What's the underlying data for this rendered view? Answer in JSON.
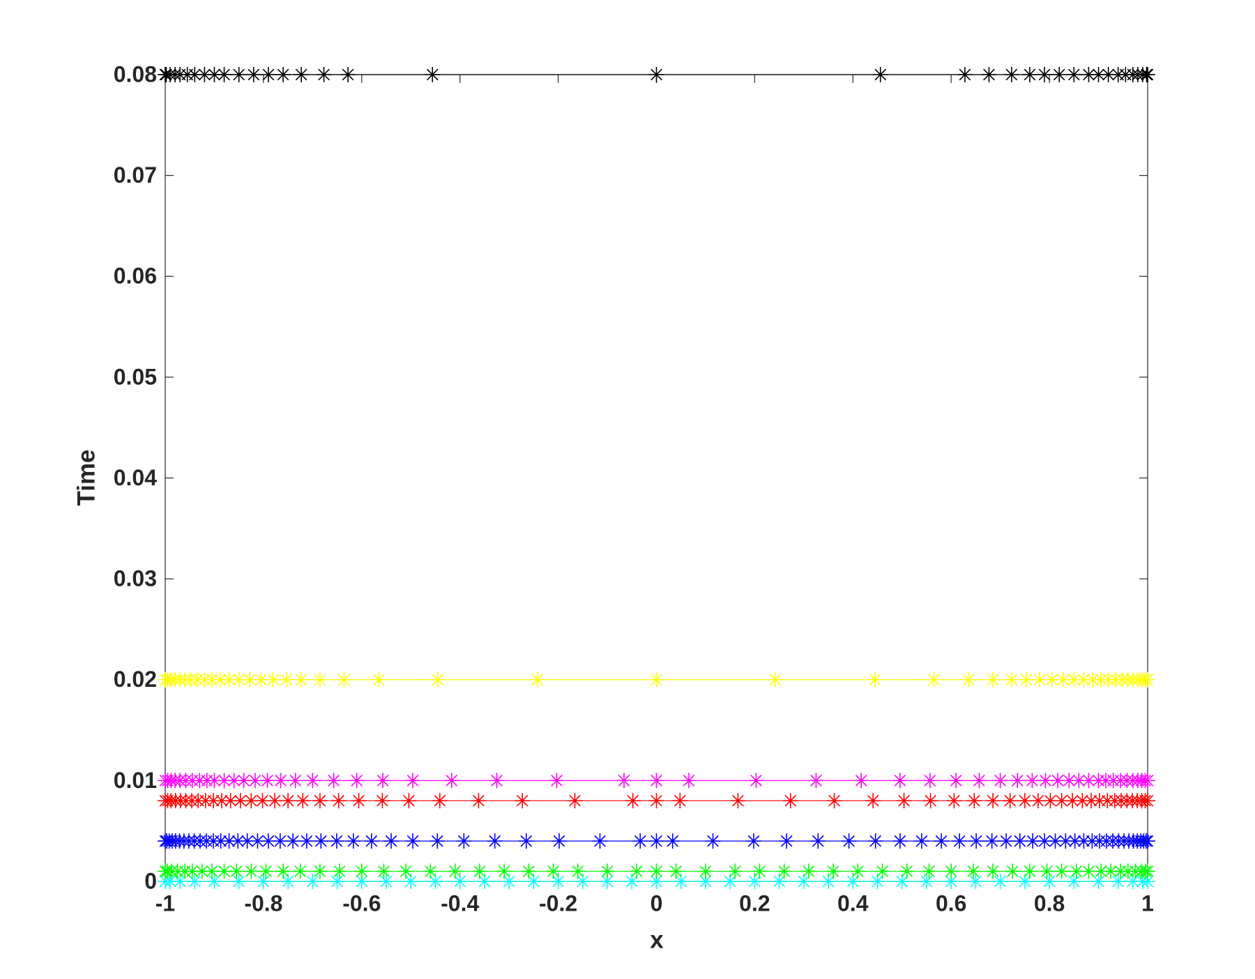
{
  "chart_data": {
    "type": "line",
    "xlabel": "x",
    "ylabel": "Time",
    "xlim": [
      -1,
      1
    ],
    "ylim": [
      0,
      0.08
    ],
    "xticks": [
      -1,
      -0.8,
      -0.6,
      -0.4,
      -0.2,
      0,
      0.2,
      0.4,
      0.6,
      0.8,
      1
    ],
    "yticks": [
      0,
      0.01,
      0.02,
      0.03,
      0.04,
      0.05,
      0.06,
      0.07,
      0.08
    ],
    "marker": "asterisk",
    "series": [
      {
        "color": "#00ffff",
        "x": [
          -1,
          -0.99,
          -0.97,
          -0.94,
          -0.9,
          -0.85,
          -0.8,
          -0.75,
          -0.7,
          -0.65,
          -0.6,
          -0.55,
          -0.5,
          -0.45,
          -0.4,
          -0.35,
          -0.3,
          -0.25,
          -0.2,
          -0.15,
          -0.1,
          -0.05,
          0,
          0.05,
          0.1,
          0.15,
          0.2,
          0.25,
          0.3,
          0.35,
          0.4,
          0.45,
          0.5,
          0.55,
          0.6,
          0.65,
          0.7,
          0.75,
          0.8,
          0.85,
          0.9,
          0.94,
          0.97,
          0.99,
          1
        ],
        "values": [
          0,
          0,
          0,
          0,
          0,
          0,
          0,
          0,
          0,
          0,
          0,
          0,
          0,
          0,
          0,
          0,
          0,
          0,
          0,
          0,
          0,
          0,
          0,
          0,
          0,
          0,
          0,
          0,
          0,
          0,
          0,
          0,
          0,
          0,
          0,
          0,
          0,
          0,
          0,
          0,
          0,
          0,
          0,
          0,
          0
        ]
      },
      {
        "color": "#00ff00",
        "x": [
          -1,
          -0.996,
          -0.987,
          -0.975,
          -0.96,
          -0.945,
          -0.925,
          -0.905,
          -0.88,
          -0.855,
          -0.825,
          -0.795,
          -0.76,
          -0.725,
          -0.685,
          -0.645,
          -0.6,
          -0.555,
          -0.51,
          -0.46,
          -0.41,
          -0.36,
          -0.31,
          -0.26,
          -0.21,
          -0.16,
          -0.1,
          -0.04,
          0,
          0.04,
          0.1,
          0.16,
          0.21,
          0.26,
          0.31,
          0.36,
          0.41,
          0.46,
          0.51,
          0.555,
          0.6,
          0.645,
          0.685,
          0.725,
          0.76,
          0.795,
          0.825,
          0.855,
          0.88,
          0.905,
          0.925,
          0.945,
          0.96,
          0.975,
          0.987,
          0.996,
          1
        ],
        "values": [
          0.001,
          0.001,
          0.001,
          0.001,
          0.001,
          0.001,
          0.001,
          0.001,
          0.001,
          0.001,
          0.001,
          0.001,
          0.001,
          0.001,
          0.001,
          0.001,
          0.001,
          0.001,
          0.001,
          0.001,
          0.001,
          0.001,
          0.001,
          0.001,
          0.001,
          0.001,
          0.001,
          0.001,
          0.001,
          0.001,
          0.001,
          0.001,
          0.001,
          0.001,
          0.001,
          0.001,
          0.001,
          0.001,
          0.001,
          0.001,
          0.001,
          0.001,
          0.001,
          0.001,
          0.001,
          0.001,
          0.001,
          0.001,
          0.001,
          0.001,
          0.001,
          0.001,
          0.001,
          0.001,
          0.001,
          0.001,
          0.001
        ]
      },
      {
        "color": "#0000ff",
        "x": [
          -1,
          -0.997,
          -0.992,
          -0.986,
          -0.979,
          -0.971,
          -0.962,
          -0.952,
          -0.941,
          -0.929,
          -0.916,
          -0.902,
          -0.887,
          -0.87,
          -0.852,
          -0.833,
          -0.812,
          -0.79,
          -0.766,
          -0.74,
          -0.712,
          -0.683,
          -0.651,
          -0.617,
          -0.58,
          -0.54,
          -0.496,
          -0.446,
          -0.392,
          -0.329,
          -0.265,
          -0.198,
          -0.115,
          -0.033,
          0,
          0.033,
          0.115,
          0.198,
          0.265,
          0.329,
          0.392,
          0.446,
          0.496,
          0.54,
          0.58,
          0.617,
          0.651,
          0.683,
          0.712,
          0.74,
          0.766,
          0.79,
          0.812,
          0.833,
          0.852,
          0.87,
          0.887,
          0.902,
          0.916,
          0.929,
          0.941,
          0.952,
          0.962,
          0.971,
          0.979,
          0.986,
          0.992,
          0.997,
          1
        ],
        "values": [
          0.004,
          0.004,
          0.004,
          0.004,
          0.004,
          0.004,
          0.004,
          0.004,
          0.004,
          0.004,
          0.004,
          0.004,
          0.004,
          0.004,
          0.004,
          0.004,
          0.004,
          0.004,
          0.004,
          0.004,
          0.004,
          0.004,
          0.004,
          0.004,
          0.004,
          0.004,
          0.004,
          0.004,
          0.004,
          0.004,
          0.004,
          0.004,
          0.004,
          0.004,
          0.004,
          0.004,
          0.004,
          0.004,
          0.004,
          0.004,
          0.004,
          0.004,
          0.004,
          0.004,
          0.004,
          0.004,
          0.004,
          0.004,
          0.004,
          0.004,
          0.004,
          0.004,
          0.004,
          0.004,
          0.004,
          0.004,
          0.004,
          0.004,
          0.004,
          0.004,
          0.004,
          0.004,
          0.004,
          0.004,
          0.004,
          0.004,
          0.004,
          0.004,
          0.004
        ]
      },
      {
        "color": "#ff0000",
        "x": [
          -1,
          -0.995,
          -0.988,
          -0.979,
          -0.969,
          -0.958,
          -0.946,
          -0.933,
          -0.918,
          -0.902,
          -0.885,
          -0.867,
          -0.847,
          -0.825,
          -0.802,
          -0.777,
          -0.75,
          -0.72,
          -0.685,
          -0.647,
          -0.606,
          -0.558,
          -0.504,
          -0.441,
          -0.362,
          -0.273,
          -0.166,
          -0.048,
          0,
          0.048,
          0.166,
          0.273,
          0.362,
          0.441,
          0.504,
          0.558,
          0.606,
          0.647,
          0.685,
          0.72,
          0.75,
          0.777,
          0.802,
          0.825,
          0.847,
          0.867,
          0.885,
          0.902,
          0.918,
          0.933,
          0.946,
          0.958,
          0.969,
          0.979,
          0.988,
          0.995,
          1
        ],
        "values": [
          0.008,
          0.008,
          0.008,
          0.008,
          0.008,
          0.008,
          0.008,
          0.008,
          0.008,
          0.008,
          0.008,
          0.008,
          0.008,
          0.008,
          0.008,
          0.008,
          0.008,
          0.008,
          0.008,
          0.008,
          0.008,
          0.008,
          0.008,
          0.008,
          0.008,
          0.008,
          0.008,
          0.008,
          0.008,
          0.008,
          0.008,
          0.008,
          0.008,
          0.008,
          0.008,
          0.008,
          0.008,
          0.008,
          0.008,
          0.008,
          0.008,
          0.008,
          0.008,
          0.008,
          0.008,
          0.008,
          0.008,
          0.008,
          0.008,
          0.008,
          0.008,
          0.008,
          0.008,
          0.008,
          0.008,
          0.008,
          0.008
        ]
      },
      {
        "color": "#ff00ff",
        "x": [
          -1,
          -0.995,
          -0.988,
          -0.98,
          -0.97,
          -0.958,
          -0.945,
          -0.93,
          -0.915,
          -0.9,
          -0.88,
          -0.86,
          -0.84,
          -0.817,
          -0.792,
          -0.765,
          -0.735,
          -0.7,
          -0.657,
          -0.61,
          -0.557,
          -0.496,
          -0.417,
          -0.325,
          -0.203,
          -0.066,
          0,
          0.066,
          0.203,
          0.325,
          0.417,
          0.496,
          0.557,
          0.61,
          0.657,
          0.7,
          0.735,
          0.765,
          0.792,
          0.817,
          0.84,
          0.86,
          0.88,
          0.9,
          0.915,
          0.93,
          0.945,
          0.958,
          0.97,
          0.98,
          0.988,
          0.995,
          1
        ],
        "values": [
          0.01,
          0.01,
          0.01,
          0.01,
          0.01,
          0.01,
          0.01,
          0.01,
          0.01,
          0.01,
          0.01,
          0.01,
          0.01,
          0.01,
          0.01,
          0.01,
          0.01,
          0.01,
          0.01,
          0.01,
          0.01,
          0.01,
          0.01,
          0.01,
          0.01,
          0.01,
          0.01,
          0.01,
          0.01,
          0.01,
          0.01,
          0.01,
          0.01,
          0.01,
          0.01,
          0.01,
          0.01,
          0.01,
          0.01,
          0.01,
          0.01,
          0.01,
          0.01,
          0.01,
          0.01,
          0.01,
          0.01,
          0.01,
          0.01,
          0.01,
          0.01,
          0.01,
          0.01
        ]
      },
      {
        "color": "#ffff00",
        "x": [
          -1,
          -0.995,
          -0.988,
          -0.98,
          -0.97,
          -0.96,
          -0.948,
          -0.935,
          -0.92,
          -0.905,
          -0.888,
          -0.87,
          -0.85,
          -0.828,
          -0.805,
          -0.78,
          -0.753,
          -0.723,
          -0.685,
          -0.636,
          -0.565,
          -0.445,
          -0.242,
          0,
          0.242,
          0.445,
          0.565,
          0.636,
          0.685,
          0.723,
          0.753,
          0.78,
          0.805,
          0.828,
          0.85,
          0.87,
          0.888,
          0.905,
          0.92,
          0.935,
          0.948,
          0.96,
          0.97,
          0.98,
          0.988,
          0.995,
          1
        ],
        "values": [
          0.02,
          0.02,
          0.02,
          0.02,
          0.02,
          0.02,
          0.02,
          0.02,
          0.02,
          0.02,
          0.02,
          0.02,
          0.02,
          0.02,
          0.02,
          0.02,
          0.02,
          0.02,
          0.02,
          0.02,
          0.02,
          0.02,
          0.02,
          0.02,
          0.02,
          0.02,
          0.02,
          0.02,
          0.02,
          0.02,
          0.02,
          0.02,
          0.02,
          0.02,
          0.02,
          0.02,
          0.02,
          0.02,
          0.02,
          0.02,
          0.02,
          0.02,
          0.02,
          0.02,
          0.02,
          0.02,
          0.02
        ]
      },
      {
        "color": "#000000",
        "x": [
          -1,
          -0.998,
          -0.99,
          -0.98,
          -0.97,
          -0.955,
          -0.94,
          -0.92,
          -0.9,
          -0.88,
          -0.85,
          -0.82,
          -0.79,
          -0.76,
          -0.723,
          -0.677,
          -0.628,
          -0.456,
          0,
          0.456,
          0.628,
          0.677,
          0.723,
          0.76,
          0.79,
          0.82,
          0.85,
          0.88,
          0.9,
          0.92,
          0.94,
          0.955,
          0.97,
          0.98,
          0.99,
          0.998,
          1
        ],
        "values": [
          0.08,
          0.08,
          0.08,
          0.08,
          0.08,
          0.08,
          0.08,
          0.08,
          0.08,
          0.08,
          0.08,
          0.08,
          0.08,
          0.08,
          0.08,
          0.08,
          0.08,
          0.08,
          0.08,
          0.08,
          0.08,
          0.08,
          0.08,
          0.08,
          0.08,
          0.08,
          0.08,
          0.08,
          0.08,
          0.08,
          0.08,
          0.08,
          0.08,
          0.08,
          0.08,
          0.08,
          0.08
        ]
      }
    ]
  }
}
